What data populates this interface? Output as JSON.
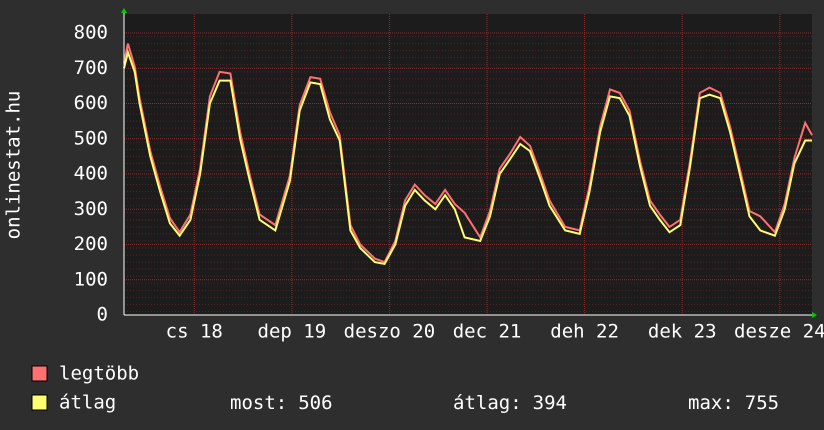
{
  "chart_data": {
    "type": "line",
    "y_label": "onlinestat.hu",
    "x": [
      17.28,
      17.32,
      17.39,
      17.44,
      17.55,
      17.65,
      17.75,
      17.85,
      17.96,
      18.06,
      18.16,
      18.26,
      18.37,
      18.47,
      18.57,
      18.67,
      18.83,
      18.98,
      19.08,
      19.19,
      19.29,
      19.39,
      19.49,
      19.6,
      19.7,
      19.85,
      19.95,
      20.06,
      20.16,
      20.26,
      20.36,
      20.47,
      20.57,
      20.67,
      20.77,
      20.93,
      21.03,
      21.13,
      21.23,
      21.34,
      21.44,
      21.54,
      21.64,
      21.8,
      21.95,
      22.05,
      22.16,
      22.26,
      22.36,
      22.46,
      22.57,
      22.67,
      22.77,
      22.87,
      22.98,
      23.08,
      23.18,
      23.28,
      23.39,
      23.49,
      23.59,
      23.69,
      23.8,
      23.95,
      24.05,
      24.15,
      24.26,
      24.33
    ],
    "series": [
      {
        "name": "legtöbb",
        "color": "#ff7070",
        "values": [
          715,
          770,
          705,
          615,
          465,
          365,
          275,
          235,
          285,
          415,
          620,
          690,
          685,
          520,
          395,
          285,
          255,
          395,
          595,
          675,
          670,
          575,
          510,
          255,
          200,
          160,
          150,
          210,
          325,
          370,
          340,
          315,
          355,
          315,
          290,
          220,
          295,
          415,
          455,
          505,
          480,
          405,
          325,
          250,
          240,
          365,
          535,
          640,
          630,
          580,
          435,
          325,
          285,
          250,
          270,
          435,
          630,
          645,
          630,
          535,
          415,
          295,
          280,
          235,
          315,
          445,
          545,
          510
        ]
      },
      {
        "name": "átlag",
        "color": "#ffff70",
        "values": [
          700,
          745,
          690,
          600,
          450,
          350,
          260,
          225,
          270,
          400,
          600,
          665,
          665,
          500,
          380,
          270,
          240,
          380,
          580,
          660,
          655,
          555,
          495,
          240,
          190,
          150,
          145,
          200,
          310,
          355,
          325,
          300,
          340,
          300,
          220,
          210,
          280,
          400,
          440,
          485,
          465,
          390,
          310,
          240,
          230,
          350,
          520,
          620,
          615,
          565,
          420,
          310,
          270,
          235,
          255,
          420,
          615,
          625,
          615,
          520,
          400,
          280,
          240,
          225,
          300,
          430,
          495,
          495
        ]
      }
    ],
    "xlim": [
      17.28,
      24.33
    ],
    "xticks": [
      {
        "value": 18,
        "label": "cs 18"
      },
      {
        "value": 19,
        "label": "dep 19"
      },
      {
        "value": 20,
        "label": "deszo 20"
      },
      {
        "value": 21,
        "label": "dec 21"
      },
      {
        "value": 22,
        "label": "deh 22"
      },
      {
        "value": 23,
        "label": "dek 23"
      },
      {
        "value": 24,
        "label": "desze 24"
      }
    ],
    "ylim": [
      0,
      800
    ],
    "yticks": [
      0,
      100,
      200,
      300,
      400,
      500,
      600,
      700,
      800
    ],
    "grid": true,
    "stats": [
      {
        "label": "most:",
        "value": 506
      },
      {
        "label": "átlag:",
        "value": 394
      },
      {
        "label": "max:",
        "value": 755
      }
    ]
  }
}
